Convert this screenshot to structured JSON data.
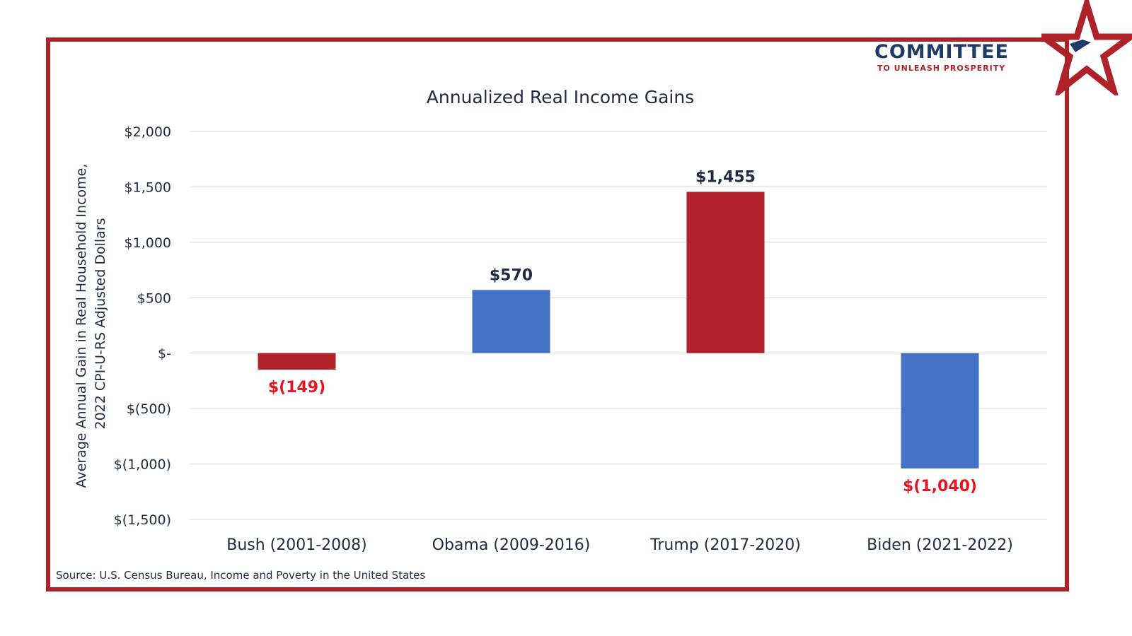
{
  "logo": {
    "line1": "COMMITTEE",
    "line2": "TO UNLEASH PROSPERITY"
  },
  "colors": {
    "frame": "#b0222a",
    "red": "#b0222a",
    "blue": "#4472c4",
    "negative_label": "#e8141e",
    "positive_label": "#1f2a44",
    "gridline": "#d9d9d9"
  },
  "source": "Source: U.S. Census Bureau, Income and Poverty in the United States",
  "chart_data": {
    "type": "bar",
    "title": "Annualized Real Income Gains",
    "xlabel": "",
    "ylabel": [
      "Average Annual Gain in Real Household Income,",
      "2022 CPI-U-RS Adjusted Dollars"
    ],
    "ylim": [
      -1500,
      2000
    ],
    "yticks": [
      2000,
      1500,
      1000,
      500,
      0,
      -500,
      -1000,
      -1500
    ],
    "ytick_labels": [
      "$2,000",
      "$1,500",
      "$1,000",
      "$500",
      "$-",
      "$(500)",
      "$(1,000)",
      "$(1,500)"
    ],
    "grid": true,
    "categories": [
      "Bush (2001-2008)",
      "Obama (2009-2016)",
      "Trump (2017-2020)",
      "Biden (2021-2022)"
    ],
    "values": [
      -149,
      570,
      1455,
      -1040
    ],
    "value_labels": [
      "$(149)",
      "$570",
      "$1,455",
      "$(1,040)"
    ],
    "bar_colors": [
      "#b0222a",
      "#4472c4",
      "#b0222a",
      "#4472c4"
    ]
  }
}
